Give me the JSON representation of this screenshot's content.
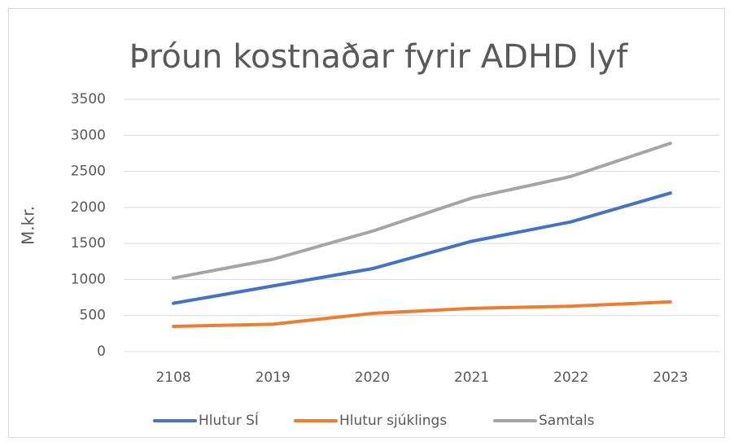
{
  "chart_data": {
    "type": "line",
    "title": "Þróun kostnaðar fyrir ADHD lyf",
    "y_label": "M.kr.",
    "categories": [
      "2108",
      "2019",
      "2020",
      "2021",
      "2022",
      "2023"
    ],
    "series": [
      {
        "name": "Hlutur SÍ",
        "color": "#4472c4",
        "values": [
          670,
          910,
          1150,
          1530,
          1800,
          2200
        ]
      },
      {
        "name": "Hlutur sjúklings",
        "color": "#ed7d31",
        "values": [
          350,
          380,
          530,
          600,
          630,
          690
        ]
      },
      {
        "name": "Samtals",
        "color": "#a5a5a5",
        "values": [
          1020,
          1280,
          1670,
          2130,
          2430,
          2890
        ]
      }
    ],
    "ylim": [
      0,
      3500
    ],
    "yticks": [
      0,
      500,
      1000,
      1500,
      2000,
      2500,
      3000,
      3500
    ],
    "grid": true,
    "legend": "bottom"
  }
}
